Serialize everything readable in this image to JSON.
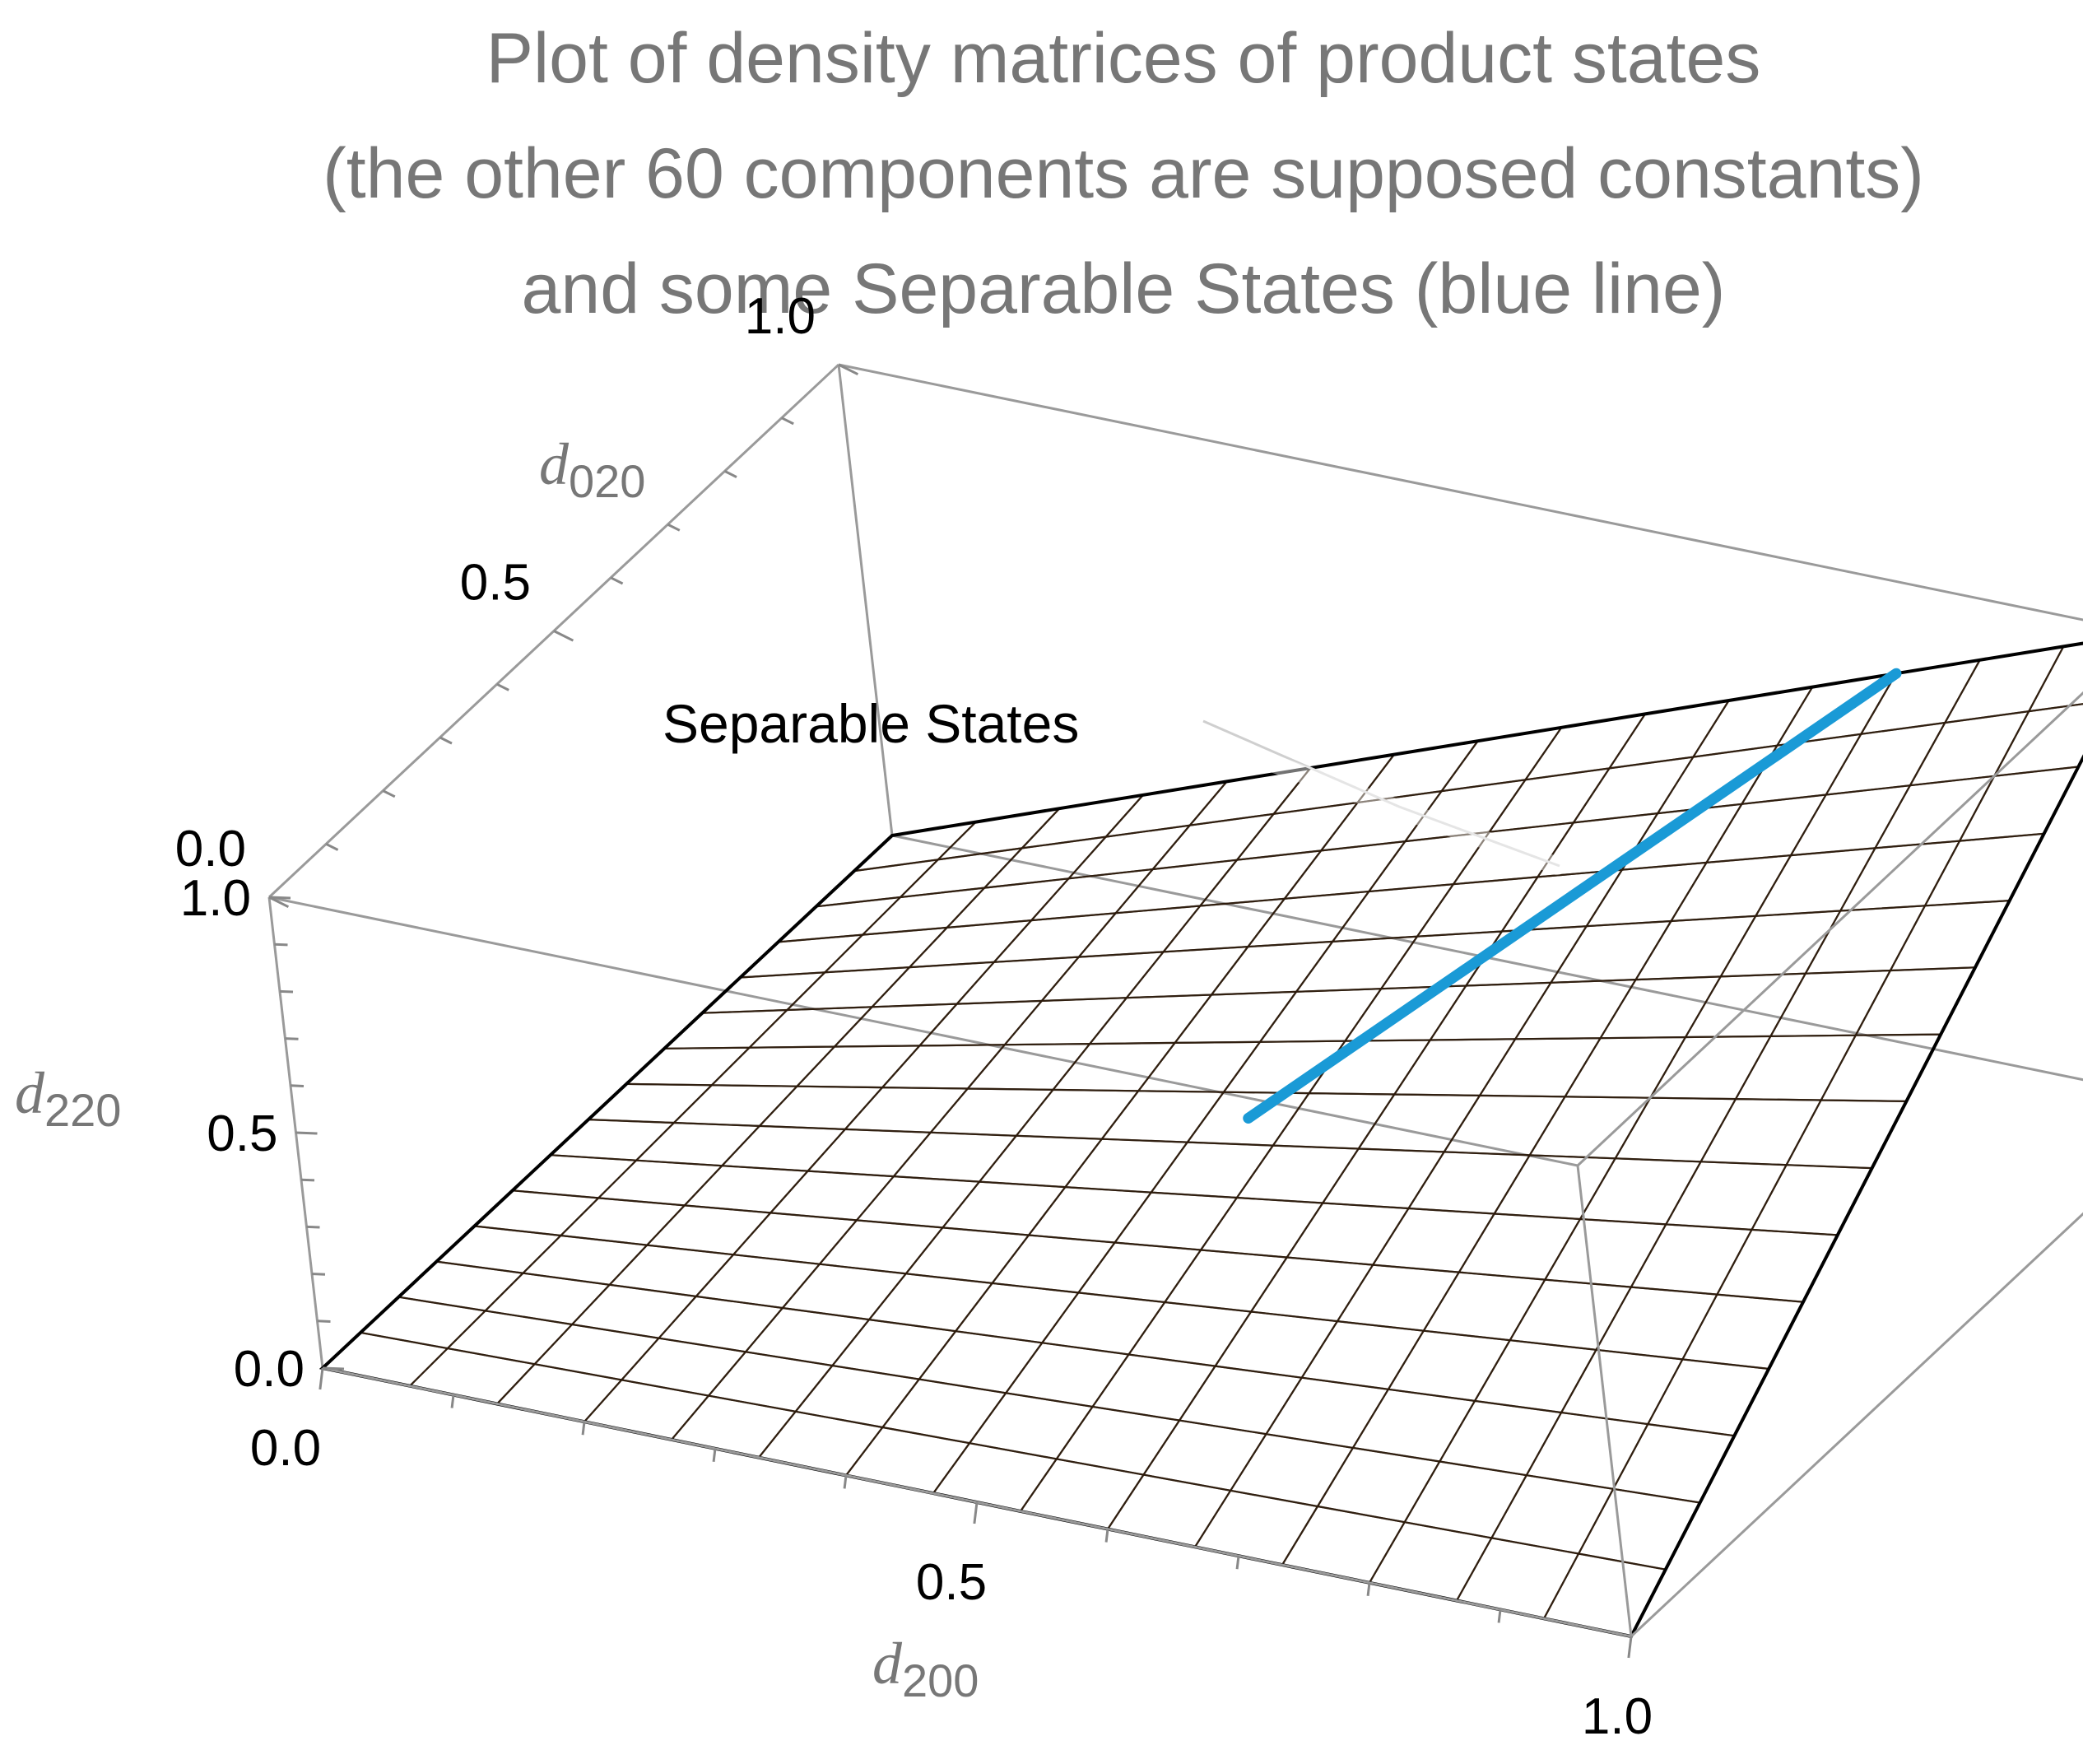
{
  "chart_data": {
    "type": "surface3d",
    "title_lines": [
      "Plot of density matrices of product states",
      "(the other 60 components are supposed constants)",
      "and some Separable States (blue line)"
    ],
    "axes": {
      "x": {
        "symbol": "d",
        "subscript": "200",
        "range": [
          0,
          1
        ],
        "ticks": [
          "0.0",
          "0.5",
          "1.0"
        ]
      },
      "y": {
        "symbol": "d",
        "subscript": "020",
        "range": [
          0,
          1
        ],
        "ticks": [
          "0.0",
          "0.5",
          "1.0"
        ]
      },
      "z": {
        "symbol": "d",
        "subscript": "220",
        "range": [
          0,
          1
        ],
        "ticks": [
          "0.0",
          "0.5",
          "1.0"
        ]
      }
    },
    "surface": {
      "equation": "z = x * y",
      "mesh_divisions": 15,
      "color_low": "#fbb024",
      "color_high": "#d9571e"
    },
    "separable_line": {
      "color": "#1a9ad6",
      "points": [
        {
          "x": 0.5,
          "y": 0.5,
          "z": 0.25
        },
        {
          "x": 0.8,
          "y": 1.0,
          "z": 0.8
        }
      ]
    },
    "annotation": {
      "text": "Separable States"
    },
    "box": true,
    "grid": false,
    "legend": "none"
  }
}
